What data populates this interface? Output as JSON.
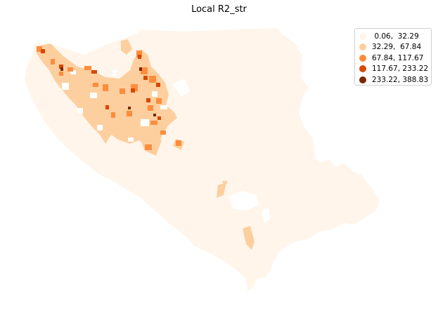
{
  "title": "Local R2_str",
  "legend": {
    "items": [
      {
        "label": " 0.06,  32.29",
        "color": "#fff5eb"
      },
      {
        "label": "32.29,  67.84",
        "color": "#fdcf9f"
      },
      {
        "label": "67.84, 117.67",
        "color": "#fd8d3c"
      },
      {
        "label": "117.67, 233.22",
        "color": "#d84801"
      },
      {
        "label": "233.22, 388.83",
        "color": "#7f2704"
      }
    ]
  },
  "colors": {
    "background": "#ffffff",
    "base_region": "#fff5eb",
    "class_1": "#fdcf9f",
    "class_2": "#fd8d3c",
    "class_3": "#d84801",
    "class_4": "#7f2704"
  }
}
